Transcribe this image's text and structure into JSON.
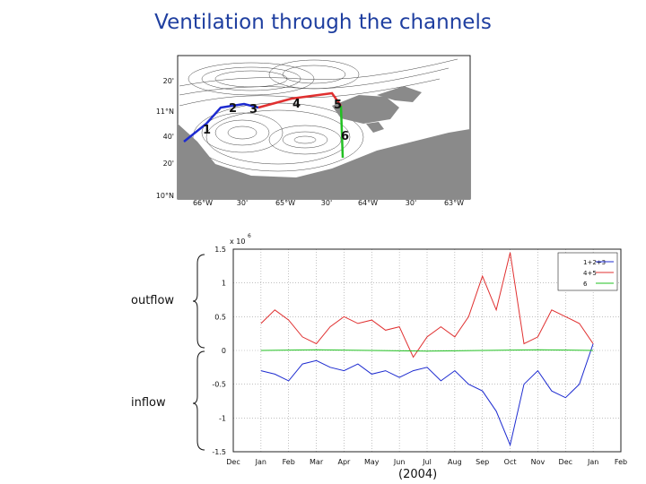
{
  "slide": {
    "title": "Ventilation through the channels",
    "outflow_label": "outflow",
    "inflow_label": "inflow",
    "year_label": "(2004)"
  },
  "map": {
    "lat_labels": [
      "20'",
      "11°N",
      "40'",
      "20'",
      "10°N"
    ],
    "lon_labels": [
      "66°W",
      "30'",
      "65°W",
      "30'",
      "64°W",
      "30'",
      "63°W"
    ],
    "section_labels": [
      "1",
      "2",
      "3",
      "4",
      "5",
      "6"
    ],
    "colors": {
      "section_1_2_3": "#1d2bd0",
      "section_4_5": "#e03030",
      "section_6": "#22c022",
      "land": "#8a8a8a"
    }
  },
  "chart_data": {
    "type": "line",
    "exponent_label": "x 10",
    "exponent_power": "6",
    "ylim": [
      -1.5,
      1.5
    ],
    "yticks": [
      "1.5",
      "1",
      "0.5",
      "0",
      "-0.5",
      "-1",
      "-1.5"
    ],
    "xticks": [
      "Dec",
      "Jan",
      "Feb",
      "Mar",
      "Apr",
      "May",
      "Jun",
      "Jul",
      "Aug",
      "Sep",
      "Oct",
      "Nov",
      "Dec",
      "Jan",
      "Feb"
    ],
    "x_range_months": [
      0,
      14
    ],
    "grid": "dotted",
    "legend_position": "top-right",
    "series": [
      {
        "name": "1+2+3",
        "color": "#1d2bd0",
        "x": [
          1.0,
          1.5,
          2.0,
          2.5,
          3.0,
          3.5,
          4.0,
          4.5,
          5.0,
          5.5,
          6.0,
          6.5,
          7.0,
          7.5,
          8.0,
          8.5,
          9.0,
          9.5,
          10.0,
          10.5,
          11.0,
          11.5,
          12.0,
          12.5,
          13.0
        ],
        "values": [
          -0.3,
          -0.35,
          -0.45,
          -0.2,
          -0.15,
          -0.25,
          -0.3,
          -0.2,
          -0.35,
          -0.3,
          -0.4,
          -0.3,
          -0.25,
          -0.45,
          -0.3,
          -0.5,
          -0.6,
          -0.9,
          -1.4,
          -0.5,
          -0.3,
          -0.6,
          -0.7,
          -0.5,
          0.1
        ]
      },
      {
        "name": "4+5",
        "color": "#e03030",
        "x": [
          1.0,
          1.5,
          2.0,
          2.5,
          3.0,
          3.5,
          4.0,
          4.5,
          5.0,
          5.5,
          6.0,
          6.5,
          7.0,
          7.5,
          8.0,
          8.5,
          9.0,
          9.5,
          10.0,
          10.5,
          11.0,
          11.5,
          12.0,
          12.5,
          13.0
        ],
        "values": [
          0.4,
          0.6,
          0.45,
          0.2,
          0.1,
          0.35,
          0.5,
          0.4,
          0.45,
          0.3,
          0.35,
          -0.1,
          0.2,
          0.35,
          0.2,
          0.5,
          1.1,
          0.6,
          1.45,
          0.1,
          0.2,
          0.6,
          0.5,
          0.4,
          0.1
        ]
      },
      {
        "name": "6",
        "color": "#22c022",
        "x": [
          1.0,
          3.0,
          5.0,
          7.0,
          9.0,
          11.0,
          13.0
        ],
        "values": [
          0.0,
          0.01,
          0.0,
          -0.01,
          0.0,
          0.01,
          0.0
        ]
      }
    ]
  }
}
